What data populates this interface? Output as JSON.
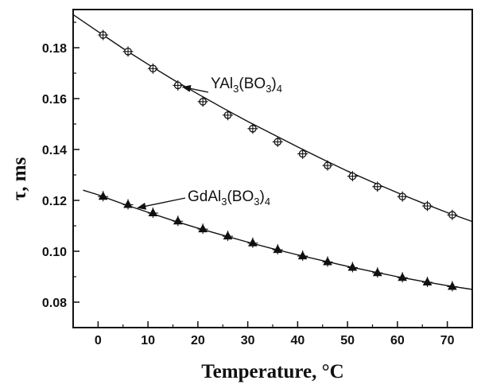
{
  "chart_data": {
    "type": "scatter",
    "title": "",
    "xlabel": "Temperature, °C",
    "ylabel": "τ, ms",
    "xlim": [
      -5,
      75
    ],
    "ylim": [
      0.07,
      0.195
    ],
    "x_ticks": [
      0,
      10,
      20,
      30,
      40,
      50,
      60,
      70
    ],
    "y_ticks": [
      0.08,
      0.1,
      0.12,
      0.14,
      0.16,
      0.18
    ],
    "grid": false,
    "legend": "none",
    "series": [
      {
        "marker": "circle-cross",
        "x": [
          1,
          6,
          11,
          16,
          21,
          26,
          31,
          36,
          41,
          46,
          51,
          56,
          61,
          66,
          71
        ],
        "y": [
          0.185,
          0.1785,
          0.1718,
          0.1652,
          0.1588,
          0.1535,
          0.1482,
          0.143,
          0.1383,
          0.1337,
          0.1295,
          0.1254,
          0.1215,
          0.1178,
          0.1143
        ],
        "fit": {
          "x": [
            -5,
            0,
            5,
            10,
            15,
            20,
            25,
            30,
            35,
            40,
            45,
            50,
            55,
            60,
            65,
            70,
            75
          ],
          "y": [
            0.193,
            0.1863,
            0.1797,
            0.1735,
            0.1675,
            0.1618,
            0.1563,
            0.151,
            0.146,
            0.141,
            0.1362,
            0.1315,
            0.1272,
            0.123,
            0.119,
            0.1152,
            0.1117
          ]
        }
      },
      {
        "marker": "triangle",
        "x": [
          1,
          6,
          11,
          16,
          21,
          26,
          31,
          36,
          41,
          46,
          51,
          56,
          61,
          66,
          71
        ],
        "y": [
          0.1215,
          0.1183,
          0.115,
          0.1118,
          0.1087,
          0.1059,
          0.1032,
          0.1006,
          0.0981,
          0.0958,
          0.0936,
          0.0915,
          0.0896,
          0.0878,
          0.0861
        ],
        "fit": {
          "x": [
            -3,
            0,
            5,
            10,
            15,
            20,
            25,
            30,
            35,
            40,
            45,
            50,
            55,
            60,
            65,
            70,
            75
          ],
          "y": [
            0.124,
            0.1222,
            0.1186,
            0.1153,
            0.1121,
            0.1091,
            0.1063,
            0.1036,
            0.101,
            0.0986,
            0.0963,
            0.0941,
            0.092,
            0.09,
            0.0882,
            0.0865,
            0.085
          ]
        }
      }
    ],
    "annotations": [
      {
        "main": "YAl",
        "sub1": "3",
        "mid": "(BO",
        "sub2": "3",
        "end": ")",
        "sub3": "4",
        "arrow_to": [
          16,
          0.1652
        ]
      },
      {
        "main": "GdAl",
        "sub1": "3",
        "mid": "(BO",
        "sub2": "3",
        "end": ")",
        "sub3": "4",
        "arrow_to": [
          7,
          0.1177
        ]
      }
    ]
  }
}
